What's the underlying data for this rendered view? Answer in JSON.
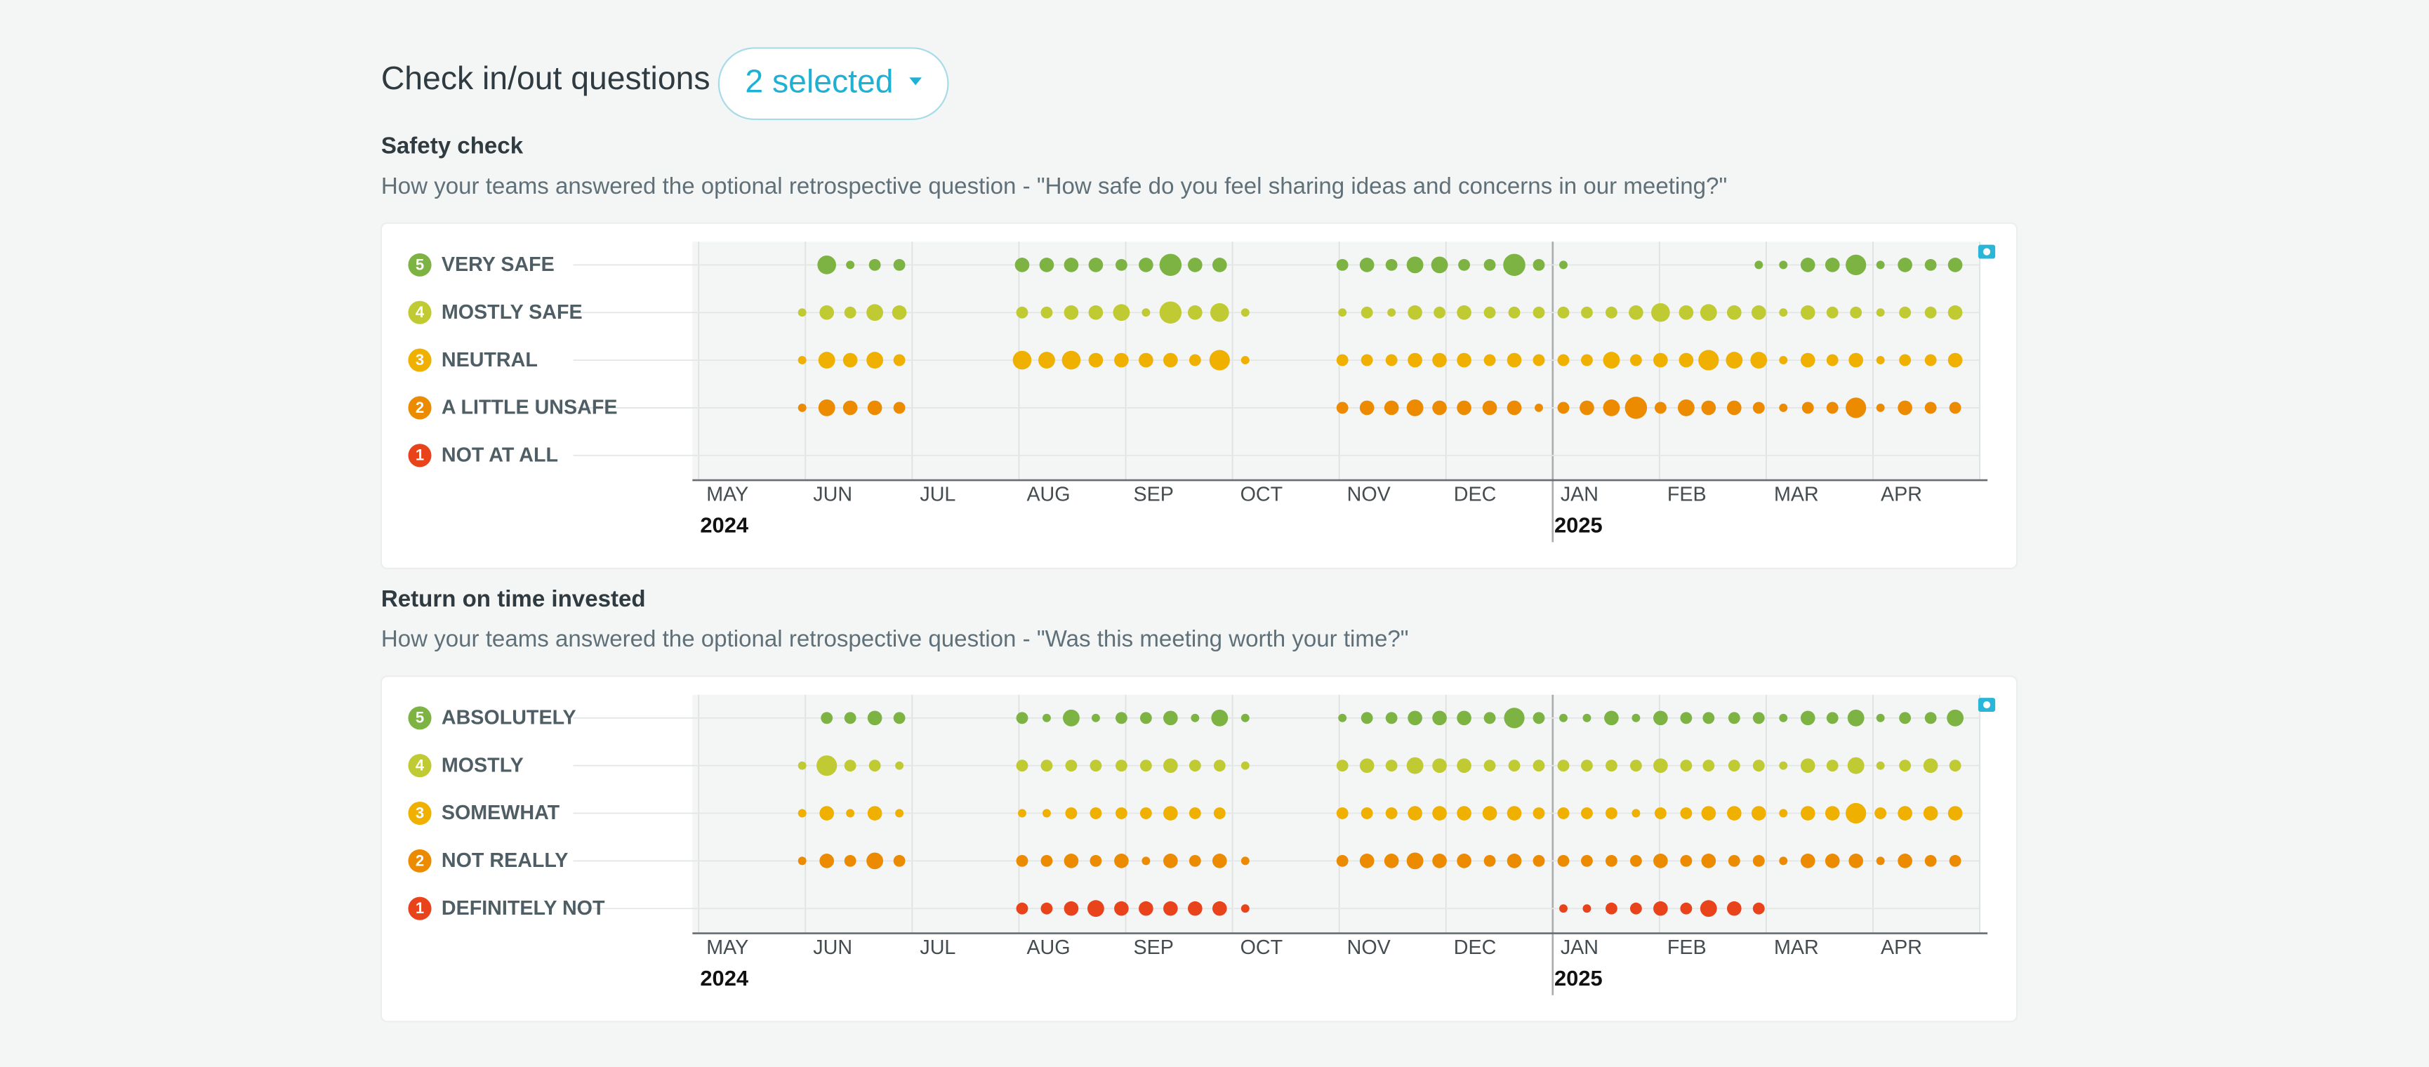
{
  "header": {
    "title": "Check in/out questions",
    "selector": "2 selected"
  },
  "chart_data": [
    {
      "type": "bubble",
      "title": "Safety check",
      "subtitle": "How your teams answered the optional retrospective question - \"How safe do you feel sharing ideas and concerns in our meeting?\"",
      "xlim": [
        0,
        12
      ],
      "xticks": [
        {
          "value": 0,
          "label": "MAY"
        },
        {
          "value": 1,
          "label": "JUN"
        },
        {
          "value": 2,
          "label": "JUL"
        },
        {
          "value": 3,
          "label": "AUG"
        },
        {
          "value": 4,
          "label": "SEP"
        },
        {
          "value": 5,
          "label": "OCT"
        },
        {
          "value": 6,
          "label": "NOV"
        },
        {
          "value": 7,
          "label": "DEC"
        },
        {
          "value": 8,
          "label": "JAN"
        },
        {
          "value": 9,
          "label": "FEB"
        },
        {
          "value": 10,
          "label": "MAR"
        },
        {
          "value": 11,
          "label": "APR"
        }
      ],
      "year_ticks": [
        {
          "value": 0,
          "label": "2024"
        },
        {
          "value": 8,
          "label": "2025"
        }
      ],
      "series": [
        {
          "name": "VERY SAFE",
          "level": 5,
          "color": "#7cb342",
          "x": [
            1.2,
            1.42,
            1.65,
            1.88,
            3.03,
            3.26,
            3.49,
            3.72,
            3.96,
            4.19,
            4.42,
            4.65,
            4.88,
            6.03,
            6.26,
            6.49,
            6.71,
            6.94,
            7.17,
            7.41,
            7.64,
            7.87,
            8.1,
            9.93,
            10.16,
            10.39,
            10.62,
            10.84,
            11.07,
            11.3,
            11.54,
            11.77
          ],
          "sizes": [
            5,
            1,
            2,
            2,
            3,
            3,
            3,
            3,
            2,
            3,
            7,
            3,
            3,
            2,
            3,
            2,
            4,
            4,
            2,
            2,
            7,
            2,
            1,
            1,
            1,
            3,
            3,
            6,
            1,
            3,
            2,
            3
          ]
        },
        {
          "name": "MOSTLY SAFE",
          "level": 4,
          "color": "#c0ca33",
          "x": [
            0.97,
            1.2,
            1.42,
            1.65,
            1.88,
            3.03,
            3.26,
            3.49,
            3.72,
            3.96,
            4.19,
            4.42,
            4.65,
            4.88,
            5.12,
            6.03,
            6.26,
            6.49,
            6.71,
            6.94,
            7.17,
            7.41,
            7.64,
            7.87,
            8.1,
            8.32,
            8.55,
            8.78,
            9.01,
            9.25,
            9.46,
            9.7,
            9.93,
            10.16,
            10.39,
            10.62,
            10.84,
            11.07,
            11.3,
            11.54,
            11.77
          ],
          "sizes": [
            1,
            3,
            2,
            4,
            3,
            2,
            2,
            3,
            3,
            4,
            1,
            7,
            3,
            5,
            1,
            1,
            2,
            1,
            3,
            2,
            3,
            2,
            2,
            2,
            2,
            2,
            2,
            3,
            5,
            3,
            4,
            3,
            3,
            1,
            3,
            2,
            2,
            1,
            2,
            2,
            3
          ]
        },
        {
          "name": "NEUTRAL",
          "level": 3,
          "color": "#efb000",
          "x": [
            0.97,
            1.2,
            1.42,
            1.65,
            1.88,
            3.03,
            3.26,
            3.49,
            3.72,
            3.96,
            4.19,
            4.42,
            4.65,
            4.88,
            5.12,
            6.03,
            6.26,
            6.49,
            6.71,
            6.94,
            7.17,
            7.41,
            7.64,
            7.87,
            8.1,
            8.32,
            8.55,
            8.78,
            9.01,
            9.25,
            9.46,
            9.7,
            9.93,
            10.16,
            10.39,
            10.62,
            10.84,
            11.07,
            11.3,
            11.54,
            11.77
          ],
          "sizes": [
            1,
            4,
            3,
            4,
            2,
            5,
            4,
            5,
            3,
            3,
            3,
            3,
            2,
            6,
            1,
            2,
            2,
            2,
            3,
            3,
            3,
            2,
            3,
            2,
            2,
            2,
            4,
            2,
            3,
            3,
            6,
            4,
            4,
            1,
            3,
            2,
            3,
            1,
            2,
            2,
            3
          ]
        },
        {
          "name": "A LITTLE UNSAFE",
          "level": 2,
          "color": "#ec8a00",
          "x": [
            0.97,
            1.2,
            1.42,
            1.65,
            1.88,
            6.03,
            6.26,
            6.49,
            6.71,
            6.94,
            7.17,
            7.41,
            7.64,
            7.87,
            8.1,
            8.32,
            8.55,
            8.78,
            9.01,
            9.25,
            9.46,
            9.7,
            9.93,
            10.16,
            10.39,
            10.62,
            10.84,
            11.07,
            11.3,
            11.54,
            11.77
          ],
          "sizes": [
            1,
            4,
            3,
            3,
            2,
            2,
            3,
            3,
            4,
            3,
            3,
            3,
            3,
            1,
            2,
            3,
            4,
            7,
            2,
            4,
            3,
            3,
            2,
            1,
            2,
            2,
            6,
            1,
            3,
            2,
            2
          ]
        },
        {
          "name": "NOT AT ALL",
          "level": 1,
          "color": "#e8431a",
          "x": [],
          "sizes": []
        }
      ]
    },
    {
      "type": "bubble",
      "title": "Return on time invested",
      "subtitle": "How your teams answered the optional retrospective question - \"Was this meeting worth your time?\"",
      "xlim": [
        0,
        12
      ],
      "xticks": [
        {
          "value": 0,
          "label": "MAY"
        },
        {
          "value": 1,
          "label": "JUN"
        },
        {
          "value": 2,
          "label": "JUL"
        },
        {
          "value": 3,
          "label": "AUG"
        },
        {
          "value": 4,
          "label": "SEP"
        },
        {
          "value": 5,
          "label": "OCT"
        },
        {
          "value": 6,
          "label": "NOV"
        },
        {
          "value": 7,
          "label": "DEC"
        },
        {
          "value": 8,
          "label": "JAN"
        },
        {
          "value": 9,
          "label": "FEB"
        },
        {
          "value": 10,
          "label": "MAR"
        },
        {
          "value": 11,
          "label": "APR"
        }
      ],
      "year_ticks": [
        {
          "value": 0,
          "label": "2024"
        },
        {
          "value": 8,
          "label": "2025"
        }
      ],
      "series": [
        {
          "name": "ABSOLUTELY",
          "level": 5,
          "color": "#7cb342",
          "x": [
            1.2,
            1.42,
            1.65,
            1.88,
            3.03,
            3.26,
            3.49,
            3.72,
            3.96,
            4.19,
            4.42,
            4.65,
            4.88,
            5.12,
            6.03,
            6.26,
            6.49,
            6.71,
            6.94,
            7.17,
            7.41,
            7.64,
            7.87,
            8.1,
            8.32,
            8.55,
            8.78,
            9.01,
            9.25,
            9.46,
            9.7,
            9.93,
            10.16,
            10.39,
            10.62,
            10.84,
            11.07,
            11.3,
            11.54,
            11.77
          ],
          "sizes": [
            2,
            2,
            3,
            2,
            2,
            1,
            4,
            1,
            2,
            2,
            3,
            1,
            4,
            1,
            1,
            2,
            2,
            3,
            3,
            3,
            2,
            6,
            2,
            1,
            1,
            3,
            1,
            3,
            2,
            2,
            2,
            2,
            1,
            3,
            2,
            4,
            1,
            2,
            2,
            4
          ]
        },
        {
          "name": "MOSTLY",
          "level": 4,
          "color": "#c0ca33",
          "x": [
            0.97,
            1.2,
            1.42,
            1.65,
            1.88,
            3.03,
            3.26,
            3.49,
            3.72,
            3.96,
            4.19,
            4.42,
            4.65,
            4.88,
            5.12,
            6.03,
            6.26,
            6.49,
            6.71,
            6.94,
            7.17,
            7.41,
            7.64,
            7.87,
            8.1,
            8.32,
            8.55,
            8.78,
            9.01,
            9.25,
            9.46,
            9.7,
            9.93,
            10.16,
            10.39,
            10.62,
            10.84,
            11.07,
            11.3,
            11.54,
            11.77
          ],
          "sizes": [
            1,
            6,
            2,
            2,
            1,
            2,
            2,
            2,
            2,
            2,
            2,
            3,
            2,
            2,
            1,
            2,
            3,
            2,
            4,
            3,
            3,
            2,
            2,
            2,
            2,
            2,
            2,
            2,
            3,
            2,
            2,
            2,
            2,
            1,
            3,
            2,
            4,
            1,
            2,
            3,
            2
          ]
        },
        {
          "name": "SOMEWHAT",
          "level": 3,
          "color": "#efb000",
          "x": [
            0.97,
            1.2,
            1.42,
            1.65,
            1.88,
            3.03,
            3.26,
            3.49,
            3.72,
            3.96,
            4.19,
            4.42,
            4.65,
            4.88,
            6.03,
            6.26,
            6.49,
            6.71,
            6.94,
            7.17,
            7.41,
            7.64,
            7.87,
            8.1,
            8.32,
            8.55,
            8.78,
            9.01,
            9.25,
            9.46,
            9.7,
            9.93,
            10.16,
            10.39,
            10.62,
            10.84,
            11.07,
            11.3,
            11.54,
            11.77
          ],
          "sizes": [
            1,
            3,
            1,
            3,
            1,
            1,
            1,
            2,
            2,
            2,
            2,
            3,
            2,
            2,
            2,
            2,
            2,
            3,
            3,
            3,
            3,
            3,
            2,
            2,
            2,
            2,
            1,
            2,
            2,
            3,
            3,
            3,
            1,
            3,
            3,
            6,
            2,
            3,
            3,
            3
          ]
        },
        {
          "name": "NOT REALLY",
          "level": 2,
          "color": "#ec8a00",
          "x": [
            0.97,
            1.2,
            1.42,
            1.65,
            1.88,
            3.03,
            3.26,
            3.49,
            3.72,
            3.96,
            4.19,
            4.42,
            4.65,
            4.88,
            5.12,
            6.03,
            6.26,
            6.49,
            6.71,
            6.94,
            7.17,
            7.41,
            7.64,
            7.87,
            8.1,
            8.32,
            8.55,
            8.78,
            9.01,
            9.25,
            9.46,
            9.7,
            9.93,
            10.16,
            10.39,
            10.62,
            10.84,
            11.07,
            11.3,
            11.54,
            11.77
          ],
          "sizes": [
            1,
            3,
            2,
            4,
            2,
            2,
            2,
            3,
            2,
            3,
            1,
            3,
            2,
            3,
            1,
            2,
            3,
            3,
            4,
            3,
            3,
            2,
            3,
            2,
            2,
            2,
            2,
            2,
            3,
            2,
            3,
            2,
            2,
            1,
            3,
            3,
            3,
            1,
            3,
            2,
            2
          ]
        },
        {
          "name": "DEFINITELY NOT",
          "level": 1,
          "color": "#e8431a",
          "x": [
            3.03,
            3.26,
            3.49,
            3.72,
            3.96,
            4.19,
            4.42,
            4.65,
            4.88,
            5.12,
            8.1,
            8.32,
            8.55,
            8.78,
            9.01,
            9.25,
            9.46,
            9.7,
            9.93
          ],
          "sizes": [
            2,
            2,
            3,
            4,
            3,
            3,
            3,
            3,
            3,
            1,
            1,
            1,
            2,
            2,
            3,
            2,
            4,
            3,
            2
          ]
        }
      ]
    }
  ]
}
